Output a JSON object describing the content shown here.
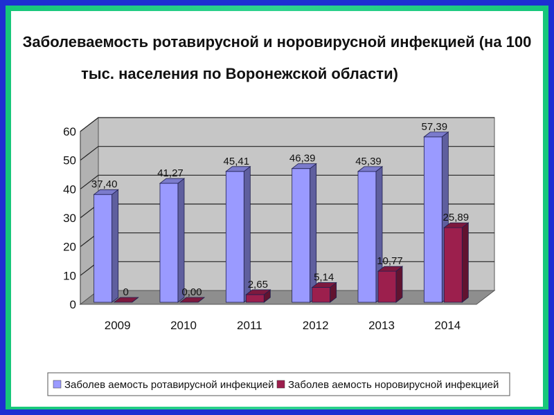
{
  "colors": {
    "outer_border": "#1e2fd2",
    "inner_border": "#22cc80",
    "series_rota": "#9a9aff",
    "series_noro": "#9c1f4d",
    "plot_wall": "#c6c6c6",
    "plot_floor": "#8e8e8e"
  },
  "chart_data": {
    "type": "bar",
    "title_lines": [
      "Заболеваемость ротавирусной и норовирусной инфекцией (на 100",
      "тыс. населения по Воронежской области)"
    ],
    "categories": [
      "2009",
      "2010",
      "2011",
      "2012",
      "2013",
      "2014"
    ],
    "y_ticks": [
      "0",
      "10",
      "20",
      "30",
      "40",
      "50",
      "60"
    ],
    "ylim": [
      0,
      60
    ],
    "grid": true,
    "legend_position": "bottom",
    "series": [
      {
        "name": "Заболев аемость ротавирусной инфекцией",
        "values": [
          37.4,
          41.27,
          45.41,
          46.39,
          45.39,
          57.39
        ],
        "labels": [
          "37,40",
          "41,27",
          "45,41",
          "46,39",
          "45,39",
          "57,39"
        ],
        "color": "#9a9aff"
      },
      {
        "name": "Заболев аемость норовирусной инфекцией",
        "values": [
          0,
          0.0,
          2.65,
          5.14,
          10.77,
          25.89
        ],
        "labels": [
          "0",
          "0,00",
          "2,65",
          "5,14",
          "10,77",
          "25,89"
        ],
        "color": "#9c1f4d"
      }
    ]
  }
}
